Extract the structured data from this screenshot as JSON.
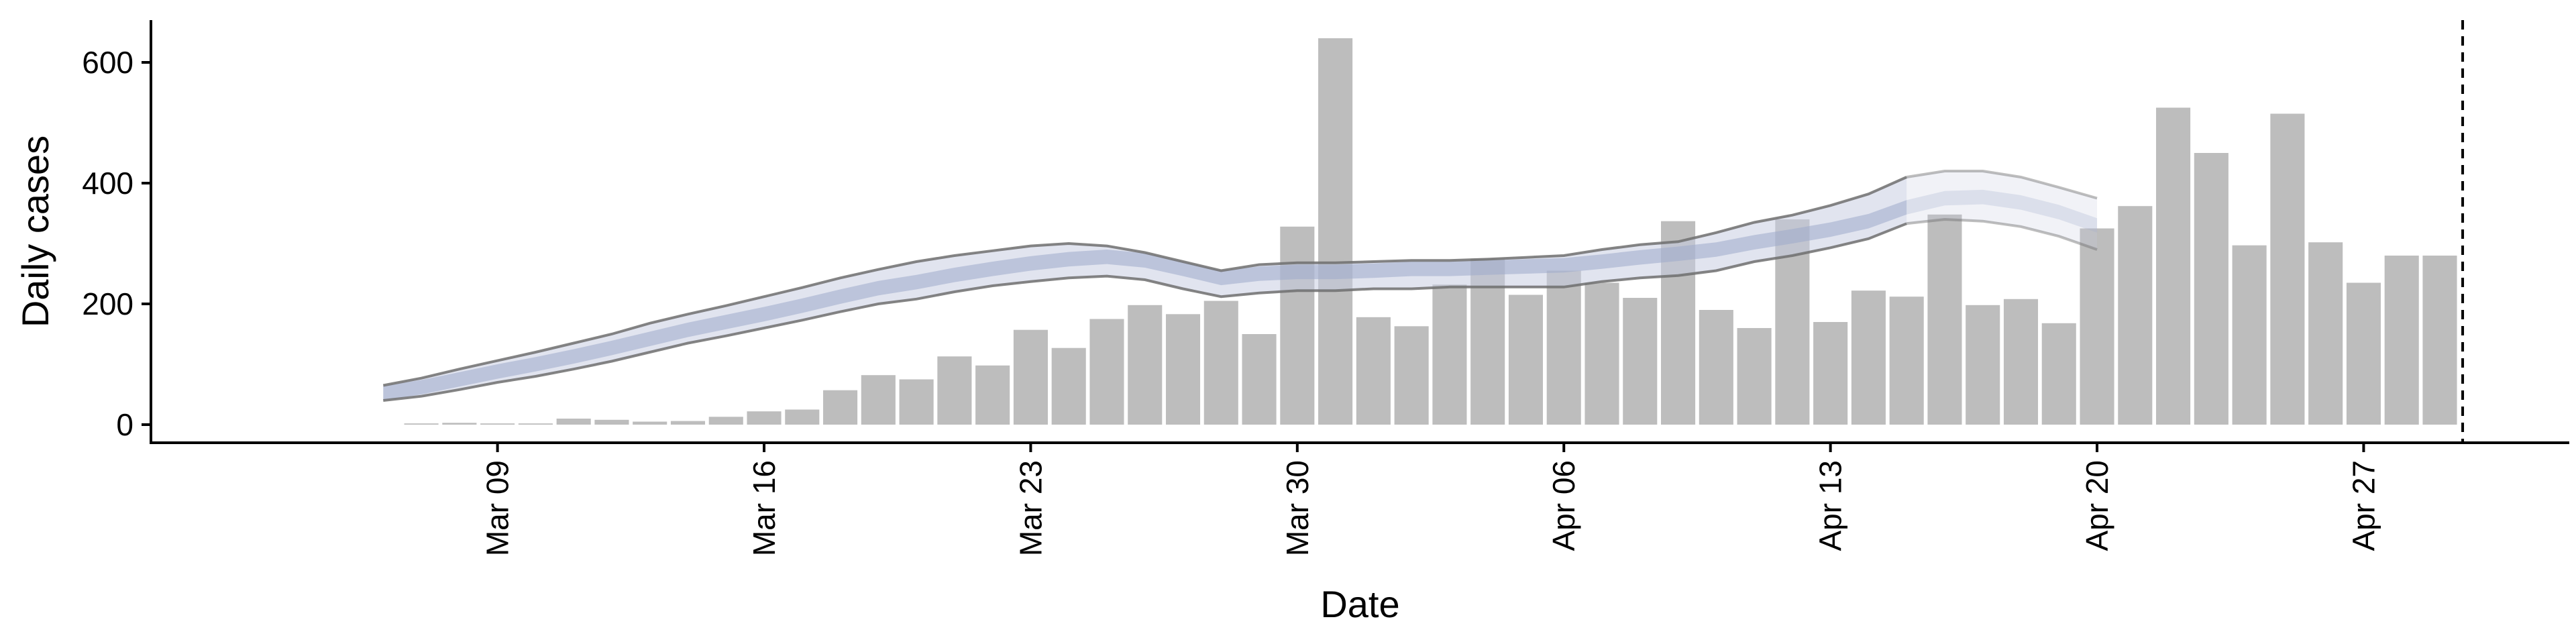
{
  "chart_data": {
    "type": "bar",
    "xlabel": "Date",
    "ylabel": "Daily cases",
    "ylim": [
      -30,
      670
    ],
    "yticks": [
      0,
      200,
      400,
      600
    ],
    "xtick_labels": [
      "Mar 09",
      "Mar 16",
      "Mar 23",
      "Mar 30",
      "Apr 06",
      "Apr 13",
      "Apr 20",
      "Apr 27"
    ],
    "xtick_days": [
      8,
      15,
      22,
      29,
      36,
      43,
      50,
      57
    ],
    "dates": [
      "Mar 07",
      "Mar 08",
      "Mar 09",
      "Mar 10",
      "Mar 11",
      "Mar 12",
      "Mar 13",
      "Mar 14",
      "Mar 15",
      "Mar 16",
      "Mar 17",
      "Mar 18",
      "Mar 19",
      "Mar 20",
      "Mar 21",
      "Mar 22",
      "Mar 23",
      "Mar 24",
      "Mar 25",
      "Mar 26",
      "Mar 27",
      "Mar 28",
      "Mar 29",
      "Mar 30",
      "Mar 31",
      "Apr 01",
      "Apr 02",
      "Apr 03",
      "Apr 04",
      "Apr 05",
      "Apr 06",
      "Apr 07",
      "Apr 08",
      "Apr 09",
      "Apr 10",
      "Apr 11",
      "Apr 12",
      "Apr 13",
      "Apr 14",
      "Apr 15",
      "Apr 16",
      "Apr 17",
      "Apr 18",
      "Apr 19",
      "Apr 20",
      "Apr 21",
      "Apr 22",
      "Apr 23",
      "Apr 24",
      "Apr 25",
      "Apr 26",
      "Apr 27",
      "Apr 28",
      "Apr 29"
    ],
    "values": [
      2,
      3,
      2,
      2,
      10,
      8,
      5,
      6,
      13,
      22,
      25,
      57,
      82,
      75,
      113,
      98,
      157,
      127,
      175,
      198,
      183,
      205,
      150,
      328,
      640,
      178,
      163,
      232,
      275,
      215,
      255,
      235,
      210,
      337,
      190,
      160,
      340,
      170,
      222,
      212,
      348,
      198,
      208,
      168,
      325,
      362,
      525,
      450,
      297,
      515,
      302,
      235,
      280,
      280
    ],
    "estimate_dates": [
      "Mar 06",
      "Mar 07",
      "Mar 08",
      "Mar 09",
      "Mar 10",
      "Mar 11",
      "Mar 12",
      "Mar 13",
      "Mar 14",
      "Mar 15",
      "Mar 16",
      "Mar 17",
      "Mar 18",
      "Mar 19",
      "Mar 20",
      "Mar 21",
      "Mar 22",
      "Mar 23",
      "Mar 24",
      "Mar 25",
      "Mar 26",
      "Mar 27",
      "Mar 28",
      "Mar 29",
      "Mar 30",
      "Mar 31",
      "Apr 01",
      "Apr 02",
      "Apr 03",
      "Apr 04",
      "Apr 05",
      "Apr 06",
      "Apr 07",
      "Apr 08",
      "Apr 09",
      "Apr 10",
      "Apr 11",
      "Apr 12",
      "Apr 13",
      "Apr 14",
      "Apr 15",
      "Apr 16",
      "Apr 17",
      "Apr 18",
      "Apr 19",
      "Apr 20"
    ],
    "estimate_median": [
      52,
      62,
      75,
      88,
      100,
      113,
      127,
      142,
      157,
      170,
      183,
      197,
      212,
      226,
      236,
      248,
      258,
      267,
      274,
      278,
      272,
      258,
      243,
      250,
      253,
      253,
      255,
      258,
      258,
      260,
      262,
      264,
      270,
      277,
      283,
      290,
      302,
      312,
      323,
      337,
      360,
      375,
      377,
      368,
      352,
      330
    ],
    "estimate_lower": [
      40,
      47,
      58,
      70,
      80,
      92,
      105,
      120,
      135,
      147,
      160,
      173,
      187,
      200,
      208,
      220,
      230,
      237,
      243,
      246,
      240,
      225,
      212,
      218,
      222,
      222,
      225,
      225,
      228,
      228,
      228,
      228,
      237,
      243,
      247,
      255,
      270,
      280,
      293,
      308,
      333,
      340,
      337,
      328,
      312,
      290
    ],
    "estimate_upper": [
      65,
      77,
      92,
      106,
      120,
      135,
      150,
      168,
      183,
      197,
      212,
      227,
      243,
      257,
      270,
      280,
      288,
      296,
      300,
      296,
      285,
      270,
      255,
      265,
      268,
      268,
      270,
      272,
      272,
      274,
      277,
      280,
      290,
      298,
      303,
      318,
      335,
      347,
      363,
      382,
      410,
      420,
      420,
      410,
      393,
      375
    ],
    "forecast_start_index": 40,
    "vline_date": "Apr 29",
    "vline_day": 59.6,
    "bar_color": "#bdbdbd",
    "band_color": "#c5cbe0",
    "inner_band_color": "#9fabcb",
    "line_color": "#6e6e6e",
    "grid": false,
    "legend": "none"
  }
}
